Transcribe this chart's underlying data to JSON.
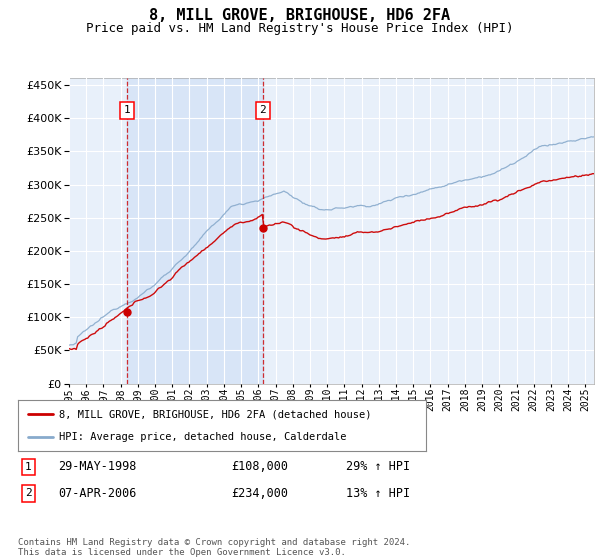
{
  "title": "8, MILL GROVE, BRIGHOUSE, HD6 2FA",
  "subtitle": "Price paid vs. HM Land Registry's House Price Index (HPI)",
  "title_fontsize": 11,
  "subtitle_fontsize": 9,
  "background_color": "#ffffff",
  "plot_bg_color": "#e8f0fa",
  "shade_color": "#ccddf5",
  "ylim": [
    0,
    460000
  ],
  "yticks": [
    0,
    50000,
    100000,
    150000,
    200000,
    250000,
    300000,
    350000,
    400000,
    450000
  ],
  "xlim_start": 1995.0,
  "xlim_end": 2025.5,
  "purchase1_date": 1998.38,
  "purchase1_price": 108000,
  "purchase1_label": "1",
  "purchase2_date": 2006.27,
  "purchase2_price": 234000,
  "purchase2_label": "2",
  "line_color_house": "#cc0000",
  "line_color_hpi": "#88aacc",
  "legend_house": "8, MILL GROVE, BRIGHOUSE, HD6 2FA (detached house)",
  "legend_hpi": "HPI: Average price, detached house, Calderdale",
  "table_row1_date": "29-MAY-1998",
  "table_row1_price": "£108,000",
  "table_row1_hpi": "29% ↑ HPI",
  "table_row2_date": "07-APR-2006",
  "table_row2_price": "£234,000",
  "table_row2_hpi": "13% ↑ HPI",
  "footer": "Contains HM Land Registry data © Crown copyright and database right 2024.\nThis data is licensed under the Open Government Licence v3.0."
}
